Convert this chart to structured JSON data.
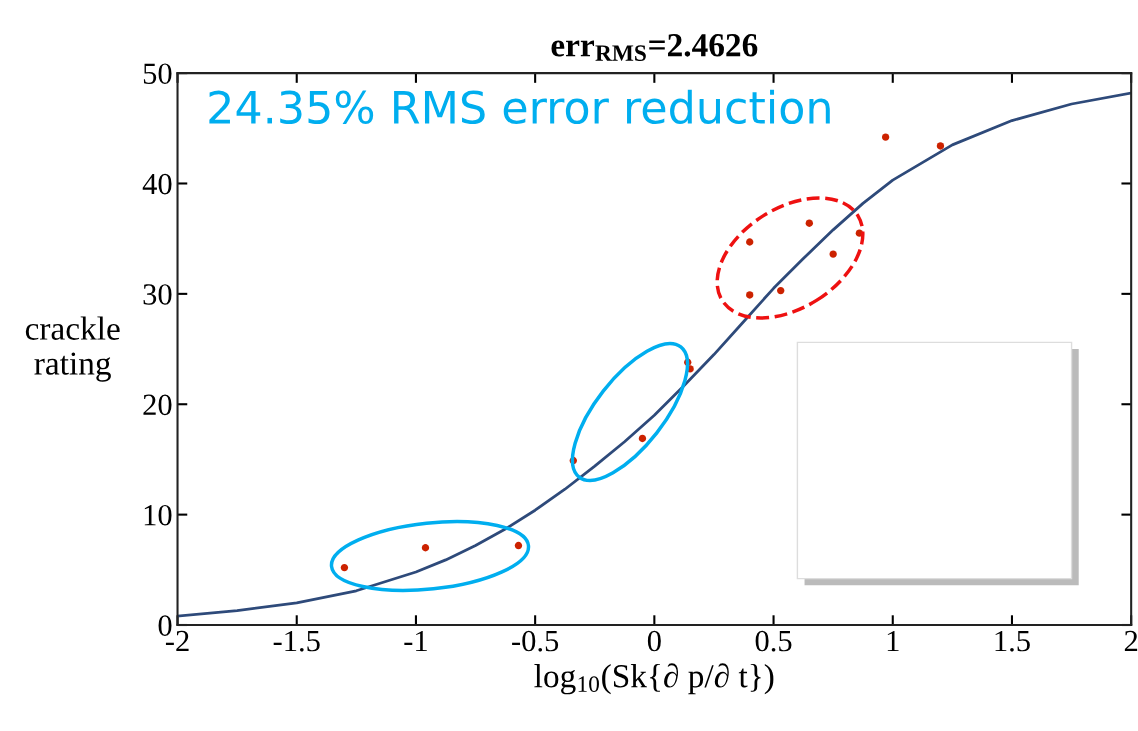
{
  "chart_data": {
    "type": "scatter",
    "title": "err$_{RMS}$=2.4626",
    "xlabel": "log$_{10}$(Sk{∂ p/∂ t})",
    "ylabel": "crackle\nrating",
    "annotations": [
      "24.35% RMS error reduction"
    ],
    "xlim": [
      -2,
      2
    ],
    "ylim": [
      0,
      50
    ],
    "xticks": [
      -2,
      {
        "value": -1.5,
        "label": "-1.5"
      },
      {
        "value": -1,
        "label": "-1"
      },
      {
        "value": -0.5,
        "label": "-0.5"
      },
      0,
      0.5,
      1,
      1.5,
      2
    ],
    "yticks": [
      0,
      10,
      20,
      30,
      40,
      50
    ],
    "grid": false,
    "legend": false,
    "series": [
      {
        "type": "line",
        "color": "#2e4a7a",
        "marker": "none",
        "line_style": "solid",
        "x": [
          -2,
          -1.75,
          -1.5,
          -1.25,
          -1,
          -0.875,
          -0.75,
          -0.625,
          -0.5,
          -0.375,
          -0.25,
          -0.125,
          0,
          0.125,
          0.25,
          0.375,
          0.5,
          0.625,
          0.75,
          0.875,
          1,
          1.25,
          1.5,
          1.75,
          2
        ],
        "values": [
          0.8,
          1.3,
          2.0,
          3.1,
          4.8,
          5.9,
          7.2,
          8.7,
          10.4,
          12.3,
          14.4,
          16.6,
          19.0,
          21.7,
          24.5,
          27.5,
          30.5,
          33.2,
          35.8,
          38.2,
          40.3,
          43.5,
          45.7,
          47.2,
          48.2
        ]
      },
      {
        "color": "#cc2200",
        "marker": "circle",
        "x": [
          -1.3,
          -0.96,
          -0.57,
          -0.34,
          -0.05,
          0.14,
          0.15,
          0.4,
          0.4,
          0.53,
          0.65,
          0.75,
          0.86,
          0.97,
          1.2
        ],
        "values": [
          5.2,
          7.0,
          7.2,
          14.9,
          16.9,
          23.8,
          23.2,
          34.7,
          29.9,
          30.3,
          36.4,
          33.6,
          35.5,
          44.2,
          43.4
        ]
      }
    ]
  }
}
